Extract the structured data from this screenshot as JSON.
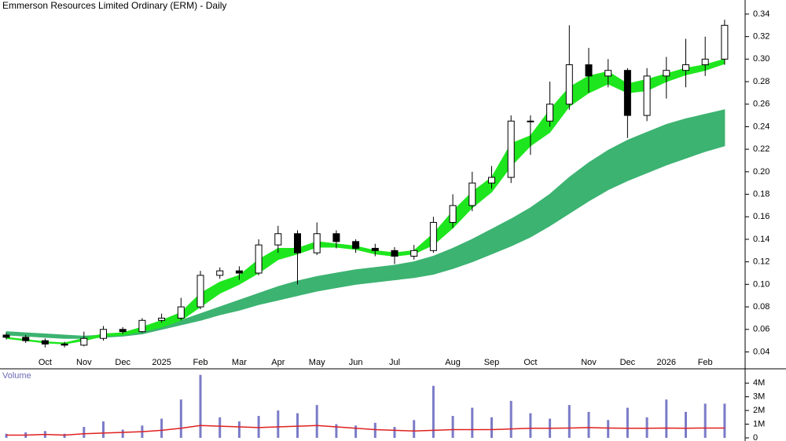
{
  "chart_data": [
    {
      "type": "candlestick",
      "title": "Emmerson Resources Limited Ordinary (ERM) - Daily",
      "categories": [
        null,
        null,
        "Oct",
        null,
        "Nov",
        null,
        "Dec",
        null,
        "2025",
        null,
        "Feb",
        null,
        "Mar",
        null,
        "Apr",
        null,
        "May",
        null,
        "Jun",
        null,
        "Jul",
        null,
        null,
        "Aug",
        null,
        "Sep",
        null,
        "Oct",
        null,
        null,
        "Nov",
        null,
        "Dec",
        null,
        "2026",
        null,
        "Feb",
        null
      ],
      "open": [
        0.055,
        0.053,
        0.05,
        0.047,
        0.046,
        0.052,
        0.06,
        0.058,
        0.068,
        0.07,
        0.08,
        0.108,
        0.112,
        0.11,
        0.135,
        0.145,
        0.128,
        0.145,
        0.138,
        0.132,
        0.13,
        0.125,
        0.13,
        0.155,
        0.17,
        0.19,
        0.195,
        0.245,
        0.245,
        0.26,
        0.295,
        0.285,
        0.29,
        0.25,
        0.285,
        0.29,
        0.295,
        0.3
      ],
      "high": [
        0.057,
        0.055,
        0.052,
        0.049,
        0.058,
        0.063,
        0.062,
        0.07,
        0.074,
        0.088,
        0.112,
        0.115,
        0.116,
        0.14,
        0.152,
        0.148,
        0.155,
        0.148,
        0.14,
        0.136,
        0.133,
        0.135,
        0.16,
        0.18,
        0.2,
        0.205,
        0.25,
        0.25,
        0.28,
        0.33,
        0.31,
        0.3,
        0.292,
        0.292,
        0.302,
        0.318,
        0.32,
        0.335
      ],
      "low": [
        0.051,
        0.048,
        0.044,
        0.044,
        0.045,
        0.05,
        0.056,
        0.057,
        0.066,
        0.068,
        0.078,
        0.105,
        0.104,
        0.108,
        0.128,
        0.1,
        0.126,
        0.132,
        0.128,
        0.125,
        0.118,
        0.122,
        0.128,
        0.15,
        0.165,
        0.185,
        0.19,
        0.215,
        0.24,
        0.255,
        0.27,
        0.275,
        0.23,
        0.245,
        0.265,
        0.275,
        0.285,
        0.295
      ],
      "close": [
        0.053,
        0.05,
        0.047,
        0.046,
        0.052,
        0.06,
        0.058,
        0.068,
        0.07,
        0.08,
        0.108,
        0.112,
        0.11,
        0.135,
        0.145,
        0.128,
        0.145,
        0.138,
        0.132,
        0.13,
        0.125,
        0.13,
        0.155,
        0.17,
        0.19,
        0.195,
        0.245,
        0.245,
        0.26,
        0.295,
        0.285,
        0.29,
        0.25,
        0.285,
        0.29,
        0.295,
        0.3,
        0.33
      ],
      "bands": [
        {
          "color": "#3cb371",
          "upper": [
            0.058,
            0.057,
            0.056,
            0.055,
            0.054,
            0.055,
            0.056,
            0.058,
            0.062,
            0.068,
            0.074,
            0.08,
            0.086,
            0.092,
            0.098,
            0.103,
            0.107,
            0.11,
            0.113,
            0.115,
            0.117,
            0.12,
            0.125,
            0.132,
            0.14,
            0.149,
            0.158,
            0.168,
            0.18,
            0.195,
            0.208,
            0.219,
            0.228,
            0.235,
            0.242,
            0.247,
            0.251,
            0.255
          ],
          "lower": [
            0.055,
            0.054,
            0.053,
            0.052,
            0.052,
            0.053,
            0.054,
            0.056,
            0.06,
            0.064,
            0.068,
            0.073,
            0.077,
            0.082,
            0.086,
            0.09,
            0.094,
            0.097,
            0.1,
            0.102,
            0.104,
            0.106,
            0.109,
            0.114,
            0.12,
            0.127,
            0.134,
            0.142,
            0.152,
            0.163,
            0.174,
            0.184,
            0.192,
            0.199,
            0.206,
            0.212,
            0.218,
            0.223
          ]
        },
        {
          "color": "#1ee61e",
          "upper": [
            0.053,
            0.051,
            0.049,
            0.048,
            0.052,
            0.056,
            0.057,
            0.062,
            0.068,
            0.075,
            0.092,
            0.102,
            0.108,
            0.122,
            0.132,
            0.132,
            0.138,
            0.136,
            0.134,
            0.13,
            0.128,
            0.13,
            0.145,
            0.165,
            0.182,
            0.195,
            0.225,
            0.232,
            0.255,
            0.275,
            0.285,
            0.289,
            0.278,
            0.282,
            0.287,
            0.292,
            0.295,
            0.3
          ],
          "lower": [
            0.052,
            0.05,
            0.048,
            0.047,
            0.05,
            0.054,
            0.055,
            0.058,
            0.062,
            0.068,
            0.08,
            0.092,
            0.1,
            0.11,
            0.122,
            0.127,
            0.133,
            0.133,
            0.131,
            0.127,
            0.125,
            0.127,
            0.135,
            0.15,
            0.168,
            0.182,
            0.205,
            0.223,
            0.235,
            0.258,
            0.27,
            0.278,
            0.27,
            0.272,
            0.28,
            0.286,
            0.29,
            0.296
          ]
        }
      ],
      "ylim": [
        0.025,
        0.3525
      ],
      "yticks": [
        {
          "value": 0.04,
          "label": "0.04"
        },
        {
          "value": 0.06,
          "label": "0.06"
        },
        {
          "value": 0.08,
          "label": "0.08"
        },
        {
          "value": 0.1,
          "label": "0.10"
        },
        {
          "value": 0.12,
          "label": "0.12"
        },
        {
          "value": 0.14,
          "label": "0.14"
        },
        {
          "value": 0.16,
          "label": "0.16"
        },
        {
          "value": 0.18,
          "label": "0.18"
        },
        {
          "value": 0.2,
          "label": "0.20"
        },
        {
          "value": 0.22,
          "label": "0.22"
        },
        {
          "value": 0.24,
          "label": "0.24"
        },
        {
          "value": 0.26,
          "label": "0.26"
        },
        {
          "value": 0.28,
          "label": "0.28"
        },
        {
          "value": 0.3,
          "label": "0.30"
        },
        {
          "value": 0.32,
          "label": "0.32"
        },
        {
          "value": 0.34,
          "label": "0.34"
        }
      ]
    },
    {
      "type": "bar",
      "title": "Volume",
      "color": "#7b7bc8",
      "values": [
        0.3,
        0.4,
        0.5,
        0.3,
        0.8,
        1.2,
        0.6,
        0.9,
        1.4,
        2.8,
        4.6,
        1.5,
        1.2,
        1.6,
        2.0,
        1.8,
        2.4,
        1.0,
        0.9,
        1.1,
        0.8,
        1.3,
        3.8,
        1.6,
        2.2,
        1.5,
        2.7,
        1.8,
        1.4,
        2.4,
        1.9,
        1.3,
        2.2,
        1.5,
        2.8,
        1.9,
        2.5,
        2.5
      ],
      "average": {
        "color": "#e02020",
        "values": [
          0.2,
          0.2,
          0.25,
          0.2,
          0.3,
          0.35,
          0.4,
          0.45,
          0.55,
          0.7,
          0.9,
          0.85,
          0.8,
          0.75,
          0.8,
          0.85,
          0.9,
          0.8,
          0.7,
          0.6,
          0.55,
          0.5,
          0.55,
          0.6,
          0.6,
          0.6,
          0.65,
          0.7,
          0.7,
          0.72,
          0.75,
          0.72,
          0.7,
          0.7,
          0.72,
          0.7,
          0.72,
          0.72
        ]
      },
      "ylim": [
        0,
        4.7
      ],
      "yticks": [
        0,
        {
          "value": 1,
          "label": "1M"
        },
        {
          "value": 2,
          "label": "2M"
        },
        {
          "value": 3,
          "label": "3M"
        },
        {
          "value": 4,
          "label": "4M"
        }
      ]
    }
  ]
}
